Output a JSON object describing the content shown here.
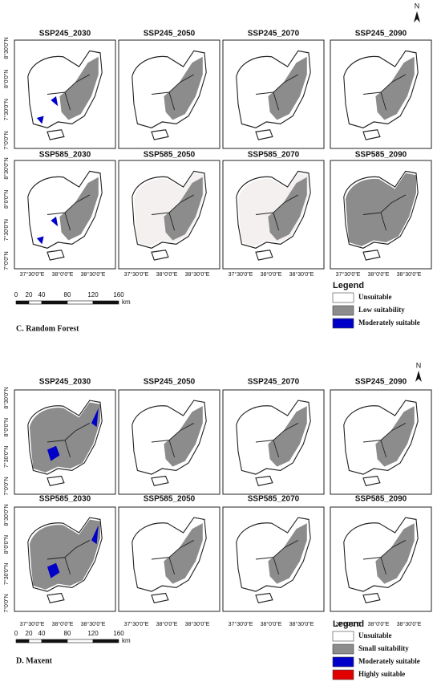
{
  "sections": [
    {
      "label": "C. Random Forest",
      "north": "N",
      "panels": [
        "SSP245_2030",
        "SSP245_2050",
        "SSP245_2070",
        "SSP245_2090",
        "SSP585_2030",
        "SSP585_2050",
        "SSP585_2070",
        "SSP585_2090"
      ],
      "lat_labels": [
        "8°30'0\"N",
        "8°0'0\"N",
        "7°30'0\"N",
        "7°0'0\"N"
      ],
      "lon_labels": [
        "37°30'0\"E",
        "38°0'0\"E",
        "38°30'0\"E"
      ],
      "scale": {
        "ticks": [
          0,
          20,
          40,
          80,
          120,
          160
        ],
        "unit": "km"
      },
      "legend": {
        "title": "Legend",
        "items": [
          "Unsuitable",
          "Low suitability",
          "Moderately suitable"
        ]
      }
    },
    {
      "label": "D. Maxent",
      "north": "N",
      "panels": [
        "SSP245_2030",
        "SSP245_2050",
        "SSP245_2070",
        "SSP245_2090",
        "SSP585_2030",
        "SSP585_2050",
        "SSP585_2070",
        "SSP585_2090"
      ],
      "lat_labels": [
        "8°30'0\"N",
        "8°0'0\"N",
        "7°30'0\"N",
        "7°0'0\"N"
      ],
      "lon_labels": [
        "37°30'0\"E",
        "38°0'0\"E",
        "38°30'0\"E"
      ],
      "scale": {
        "ticks": [
          0,
          20,
          40,
          80,
          120,
          160
        ],
        "unit": "km"
      },
      "legend": {
        "title": "Legend",
        "items": [
          "Unsuitable",
          "Small suitability",
          "Moderately suitable",
          "Highly suitable"
        ]
      }
    }
  ]
}
